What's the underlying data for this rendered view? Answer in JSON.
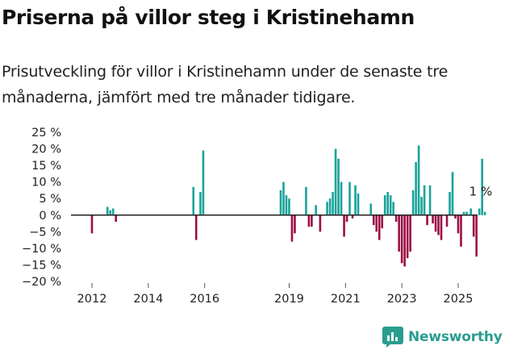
{
  "title": "Priserna på villor steg i Kristinehamn",
  "subtitle": "Prisutveckling för villor i Kristinehamn under de senaste tre månaderna, jämfört med tre månader tidigare.",
  "brand": {
    "name": "Newsworthy",
    "icon": "bar-chart-logo-icon"
  },
  "colors": {
    "positive": "#1aa39a",
    "negative": "#9b0f45",
    "zero_line": "#222222",
    "brand": "#2a9d8f"
  },
  "chart_data": {
    "type": "bar",
    "title": "",
    "xlabel": "",
    "ylabel": "",
    "ylim": [
      -20,
      25
    ],
    "y_ticks": [
      25,
      20,
      15,
      10,
      5,
      0,
      -5,
      -10,
      -15,
      -20
    ],
    "y_tick_labels": [
      "25 %",
      "20 %",
      "15 %",
      "10 %",
      "5 %",
      "0 %",
      "−5 %",
      "−10 %",
      "−15 %",
      "−20 %"
    ],
    "x_ticks": [
      2012,
      2014,
      2016,
      2019,
      2021,
      2023,
      2025
    ],
    "x_tick_labels": [
      "2012",
      "2014",
      "2016",
      "2019",
      "2021",
      "2023",
      "2025"
    ],
    "grid": false,
    "annotation": {
      "text": "1 %",
      "x": 2025.4,
      "y": 1
    },
    "series": [
      {
        "values": [
          [
            2012.0,
            -5.5
          ],
          [
            2012.55,
            2.5
          ],
          [
            2012.65,
            1.5
          ],
          [
            2012.75,
            2
          ],
          [
            2012.85,
            -2
          ],
          [
            2015.6,
            8.5
          ],
          [
            2015.7,
            -7.5
          ],
          [
            2015.85,
            7
          ],
          [
            2015.95,
            19.5
          ],
          [
            2018.7,
            7.5
          ],
          [
            2018.8,
            10
          ],
          [
            2018.9,
            6
          ],
          [
            2019.0,
            5
          ],
          [
            2019.1,
            -8
          ],
          [
            2019.2,
            -5.5
          ],
          [
            2019.6,
            8.5
          ],
          [
            2019.7,
            -3.5
          ],
          [
            2019.8,
            -3.5
          ],
          [
            2019.95,
            3
          ],
          [
            2020.1,
            -5
          ],
          [
            2020.35,
            4
          ],
          [
            2020.45,
            5
          ],
          [
            2020.55,
            7
          ],
          [
            2020.65,
            20
          ],
          [
            2020.75,
            17
          ],
          [
            2020.85,
            10
          ],
          [
            2020.95,
            -6.5
          ],
          [
            2021.05,
            -2
          ],
          [
            2021.15,
            10
          ],
          [
            2021.25,
            -1
          ],
          [
            2021.35,
            9
          ],
          [
            2021.45,
            6.5
          ],
          [
            2021.9,
            3.5
          ],
          [
            2022.0,
            -3
          ],
          [
            2022.1,
            -5
          ],
          [
            2022.2,
            -7.5
          ],
          [
            2022.3,
            -4
          ],
          [
            2022.4,
            6
          ],
          [
            2022.5,
            7
          ],
          [
            2022.6,
            6
          ],
          [
            2022.7,
            4
          ],
          [
            2022.8,
            -2
          ],
          [
            2022.9,
            -11
          ],
          [
            2023.0,
            -14.5
          ],
          [
            2023.1,
            -15.5
          ],
          [
            2023.2,
            -13
          ],
          [
            2023.3,
            -11
          ],
          [
            2023.4,
            7.5
          ],
          [
            2023.5,
            16
          ],
          [
            2023.6,
            21
          ],
          [
            2023.7,
            5.5
          ],
          [
            2023.8,
            9
          ],
          [
            2023.9,
            -3
          ],
          [
            2024.0,
            9
          ],
          [
            2024.1,
            -2.5
          ],
          [
            2024.2,
            -5
          ],
          [
            2024.3,
            -6
          ],
          [
            2024.4,
            -7.5
          ],
          [
            2024.6,
            -3.5
          ],
          [
            2024.7,
            7
          ],
          [
            2024.8,
            13
          ],
          [
            2024.9,
            -1
          ],
          [
            2025.0,
            -5.5
          ],
          [
            2025.1,
            -9.5
          ],
          [
            2025.2,
            1
          ],
          [
            2025.3,
            1
          ],
          [
            2025.45,
            2
          ],
          [
            2025.55,
            -6.5
          ],
          [
            2025.65,
            -12.5
          ],
          [
            2025.75,
            2
          ],
          [
            2025.85,
            17
          ],
          [
            2025.95,
            1
          ]
        ]
      }
    ]
  }
}
